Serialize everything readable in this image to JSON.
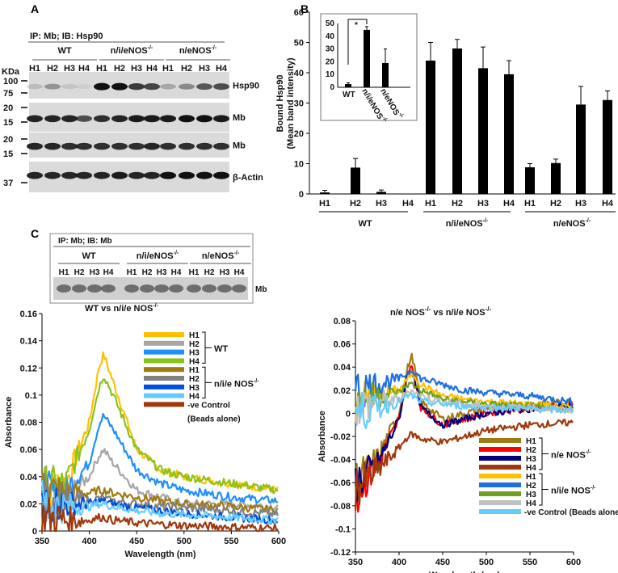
{
  "panels": {
    "a": "A",
    "b": "B",
    "c": "C"
  },
  "blot_a": {
    "header": "IP: Mb; IB: Hsp90",
    "groups": [
      "WT",
      "n/i/eNOS",
      "n/eNOS"
    ],
    "sup": "-/-",
    "lanes": [
      "H1",
      "H2",
      "H3",
      "H4",
      "H1",
      "H2",
      "H3",
      "H4",
      "H1",
      "H2",
      "H3",
      "H4"
    ],
    "kda": "KDa",
    "markers": [
      "100",
      "75",
      "20",
      "15",
      "20",
      "15",
      "37"
    ],
    "rows": [
      "Hsp90",
      "Mb",
      "Mb",
      "β-Actin"
    ]
  },
  "blot_c": {
    "header": "IP: Mb; IB: Mb",
    "groups": [
      "WT",
      "n/i/eNOS",
      "n/eNOS"
    ],
    "sup": "-/-",
    "lanes": [
      "H1",
      "H2",
      "H3",
      "H4",
      "H1",
      "H2",
      "H3",
      "H4",
      "H1",
      "H2",
      "H3",
      "H4"
    ],
    "row": "Mb"
  },
  "chart_data": [
    {
      "type": "bar",
      "id": "bar-main",
      "ylabel": "Bound Hsp90",
      "ylabel2": "(Mean band intensity)",
      "ylim": [
        0,
        60
      ],
      "yticks": [
        0,
        10,
        20,
        30,
        40,
        50,
        60
      ],
      "categories": [
        "H1",
        "H2",
        "H3",
        "H4",
        "H1",
        "H2",
        "H3",
        "H4",
        "H1",
        "H2",
        "H3",
        "H4"
      ],
      "groups": [
        "WT",
        "n/i/eNOS",
        "n/eNOS"
      ],
      "sup": "-/-",
      "values": [
        0.5,
        8.7,
        0.7,
        0,
        44,
        48,
        41.5,
        39.5,
        8.8,
        10.2,
        29.5,
        31
      ],
      "errors": [
        0.7,
        3,
        0.6,
        0,
        6,
        3,
        7,
        4.5,
        1.2,
        1.3,
        6,
        3
      ]
    },
    {
      "type": "bar",
      "id": "bar-inset",
      "ylim": [
        0,
        50
      ],
      "yticks": [
        0,
        10,
        20,
        30,
        40,
        50
      ],
      "categories": [
        "WT",
        "n/i/eNOS",
        "n/eNOS"
      ],
      "sup": "-/-",
      "values": [
        2.5,
        45,
        19
      ],
      "errors": [
        1,
        2.5,
        11
      ],
      "annotation": "*"
    },
    {
      "type": "line",
      "id": "spectra-left",
      "title": "WT vs n/i/e NOS",
      "title_sup": "-/-",
      "xlabel": "Wavelength (nm)",
      "ylabel": "Absorbance",
      "xlim": [
        350,
        600
      ],
      "ylim": [
        0,
        0.16
      ],
      "xticks": [
        350,
        400,
        450,
        500,
        550,
        600
      ],
      "yticks": [
        "0",
        "0.02",
        "0.04",
        "0.06",
        "0.08",
        "0.1",
        "0.12",
        "0.14",
        "0.16"
      ],
      "x": [
        350,
        375,
        400,
        410,
        415,
        425,
        450,
        475,
        500,
        550,
        600
      ],
      "legend_groups": [
        "WT",
        "n/i/e NOS"
      ],
      "control_label": "-ve Control",
      "control_sub": "(Beads alone)",
      "series": [
        {
          "name": "H1",
          "group": "WT",
          "color": "#ffc000",
          "values": [
            0.03,
            0.035,
            0.08,
            0.12,
            0.13,
            0.11,
            0.06,
            0.045,
            0.04,
            0.035,
            0.03
          ]
        },
        {
          "name": "H2",
          "group": "WT",
          "color": "#a6a6a6",
          "values": [
            0.02,
            0.025,
            0.04,
            0.055,
            0.06,
            0.05,
            0.03,
            0.025,
            0.02,
            0.02,
            0.018
          ]
        },
        {
          "name": "H3",
          "group": "WT",
          "color": "#1e90ff",
          "values": [
            0.025,
            0.03,
            0.05,
            0.078,
            0.085,
            0.075,
            0.045,
            0.035,
            0.03,
            0.025,
            0.022
          ]
        },
        {
          "name": "H4",
          "group": "WT",
          "color": "#8bc21c",
          "values": [
            0.03,
            0.035,
            0.075,
            0.105,
            0.115,
            0.1,
            0.06,
            0.045,
            0.04,
            0.035,
            0.03
          ]
        },
        {
          "name": "H1",
          "group": "n/i/e NOS",
          "color": "#a07a10",
          "values": [
            0.03,
            0.028,
            0.028,
            0.03,
            0.03,
            0.028,
            0.025,
            0.022,
            0.02,
            0.018,
            0.015
          ]
        },
        {
          "name": "H2",
          "group": "n/i/e NOS",
          "color": "#808080",
          "values": [
            0.025,
            0.023,
            0.022,
            0.024,
            0.024,
            0.022,
            0.02,
            0.018,
            0.017,
            0.015,
            0.012
          ]
        },
        {
          "name": "H3",
          "group": "n/i/e NOS",
          "color": "#0050dc",
          "values": [
            0.02,
            0.02,
            0.02,
            0.022,
            0.022,
            0.02,
            0.017,
            0.015,
            0.013,
            0.01,
            0.008
          ]
        },
        {
          "name": "H4",
          "group": "n/i/e NOS",
          "color": "#66ccff",
          "values": [
            0.02,
            0.018,
            0.018,
            0.02,
            0.02,
            0.018,
            0.015,
            0.013,
            0.012,
            0.01,
            0.008
          ]
        },
        {
          "name": "-ve Control",
          "group": "control",
          "color": "#a0380a",
          "values": [
            0.01,
            0.008,
            0.008,
            0.01,
            0.01,
            0.008,
            0.006,
            0.005,
            0.004,
            0.003,
            0.002
          ]
        }
      ]
    },
    {
      "type": "line",
      "id": "spectra-right",
      "title": "n/e NOS",
      "title_mid": " vs n/i/e NOS",
      "title_sup": "-/-",
      "xlabel": "Wavelength (nm)",
      "ylabel": "Absorbance",
      "xlim": [
        350,
        600
      ],
      "ylim": [
        -0.12,
        0.08
      ],
      "xticks": [
        350,
        400,
        450,
        500,
        550,
        600
      ],
      "yticks": [
        "-0.12",
        "-0.1",
        "-0.08",
        "-0.06",
        "-0.04",
        "-0.02",
        "0",
        "0.02",
        "0.04",
        "0.06",
        "0.08"
      ],
      "x": [
        350,
        375,
        400,
        410,
        415,
        425,
        450,
        475,
        500,
        550,
        600
      ],
      "legend_groups": [
        "n/e NOS",
        "n/i/e NOS"
      ],
      "control_label": "-ve Control (Beads alone)",
      "series": [
        {
          "name": "H1",
          "group": "n/e NOS",
          "color": "#a07a10",
          "values": [
            -0.06,
            -0.04,
            0.0,
            0.04,
            0.05,
            0.01,
            -0.005,
            0.0,
            0.005,
            0.008,
            0.01
          ]
        },
        {
          "name": "H2",
          "group": "n/e NOS",
          "color": "#ff0000",
          "values": [
            -0.07,
            -0.045,
            -0.005,
            0.035,
            0.04,
            0.005,
            -0.01,
            -0.005,
            0.0,
            0.005,
            0.008
          ]
        },
        {
          "name": "H3",
          "group": "n/e NOS",
          "color": "#000080",
          "values": [
            -0.06,
            -0.045,
            -0.005,
            0.035,
            0.038,
            0.005,
            -0.01,
            -0.005,
            0.0,
            0.004,
            0.006
          ]
        },
        {
          "name": "H4",
          "group": "n/e NOS",
          "color": "#a0380a",
          "values": [
            -0.065,
            -0.05,
            -0.03,
            -0.02,
            -0.018,
            -0.022,
            -0.025,
            -0.02,
            -0.015,
            -0.01,
            -0.008
          ]
        },
        {
          "name": "H1",
          "group": "n/i/e NOS",
          "color": "#ffc000",
          "values": [
            0.01,
            0.015,
            0.02,
            0.03,
            0.035,
            0.025,
            0.015,
            0.012,
            0.01,
            0.008,
            0.005
          ]
        },
        {
          "name": "H2",
          "group": "n/i/e NOS",
          "color": "#1e6fe0",
          "values": [
            0.02,
            0.025,
            0.03,
            0.035,
            0.038,
            0.03,
            0.025,
            0.02,
            0.018,
            0.015,
            0.01
          ]
        },
        {
          "name": "H3",
          "group": "n/i/e NOS",
          "color": "#70a020",
          "values": [
            0.01,
            0.015,
            0.018,
            0.025,
            0.025,
            0.02,
            0.012,
            0.01,
            0.008,
            0.006,
            0.004
          ]
        },
        {
          "name": "H4",
          "group": "n/i/e NOS",
          "color": "#c0c0c0",
          "values": [
            0.005,
            0.01,
            0.012,
            0.018,
            0.02,
            0.015,
            0.01,
            0.008,
            0.006,
            0.005,
            0.003
          ]
        },
        {
          "name": "-ve Control",
          "group": "control",
          "color": "#66ccff",
          "values": [
            0.0,
            0.005,
            0.01,
            0.015,
            0.015,
            0.01,
            0.008,
            0.006,
            0.005,
            0.004,
            0.002
          ]
        }
      ]
    }
  ]
}
